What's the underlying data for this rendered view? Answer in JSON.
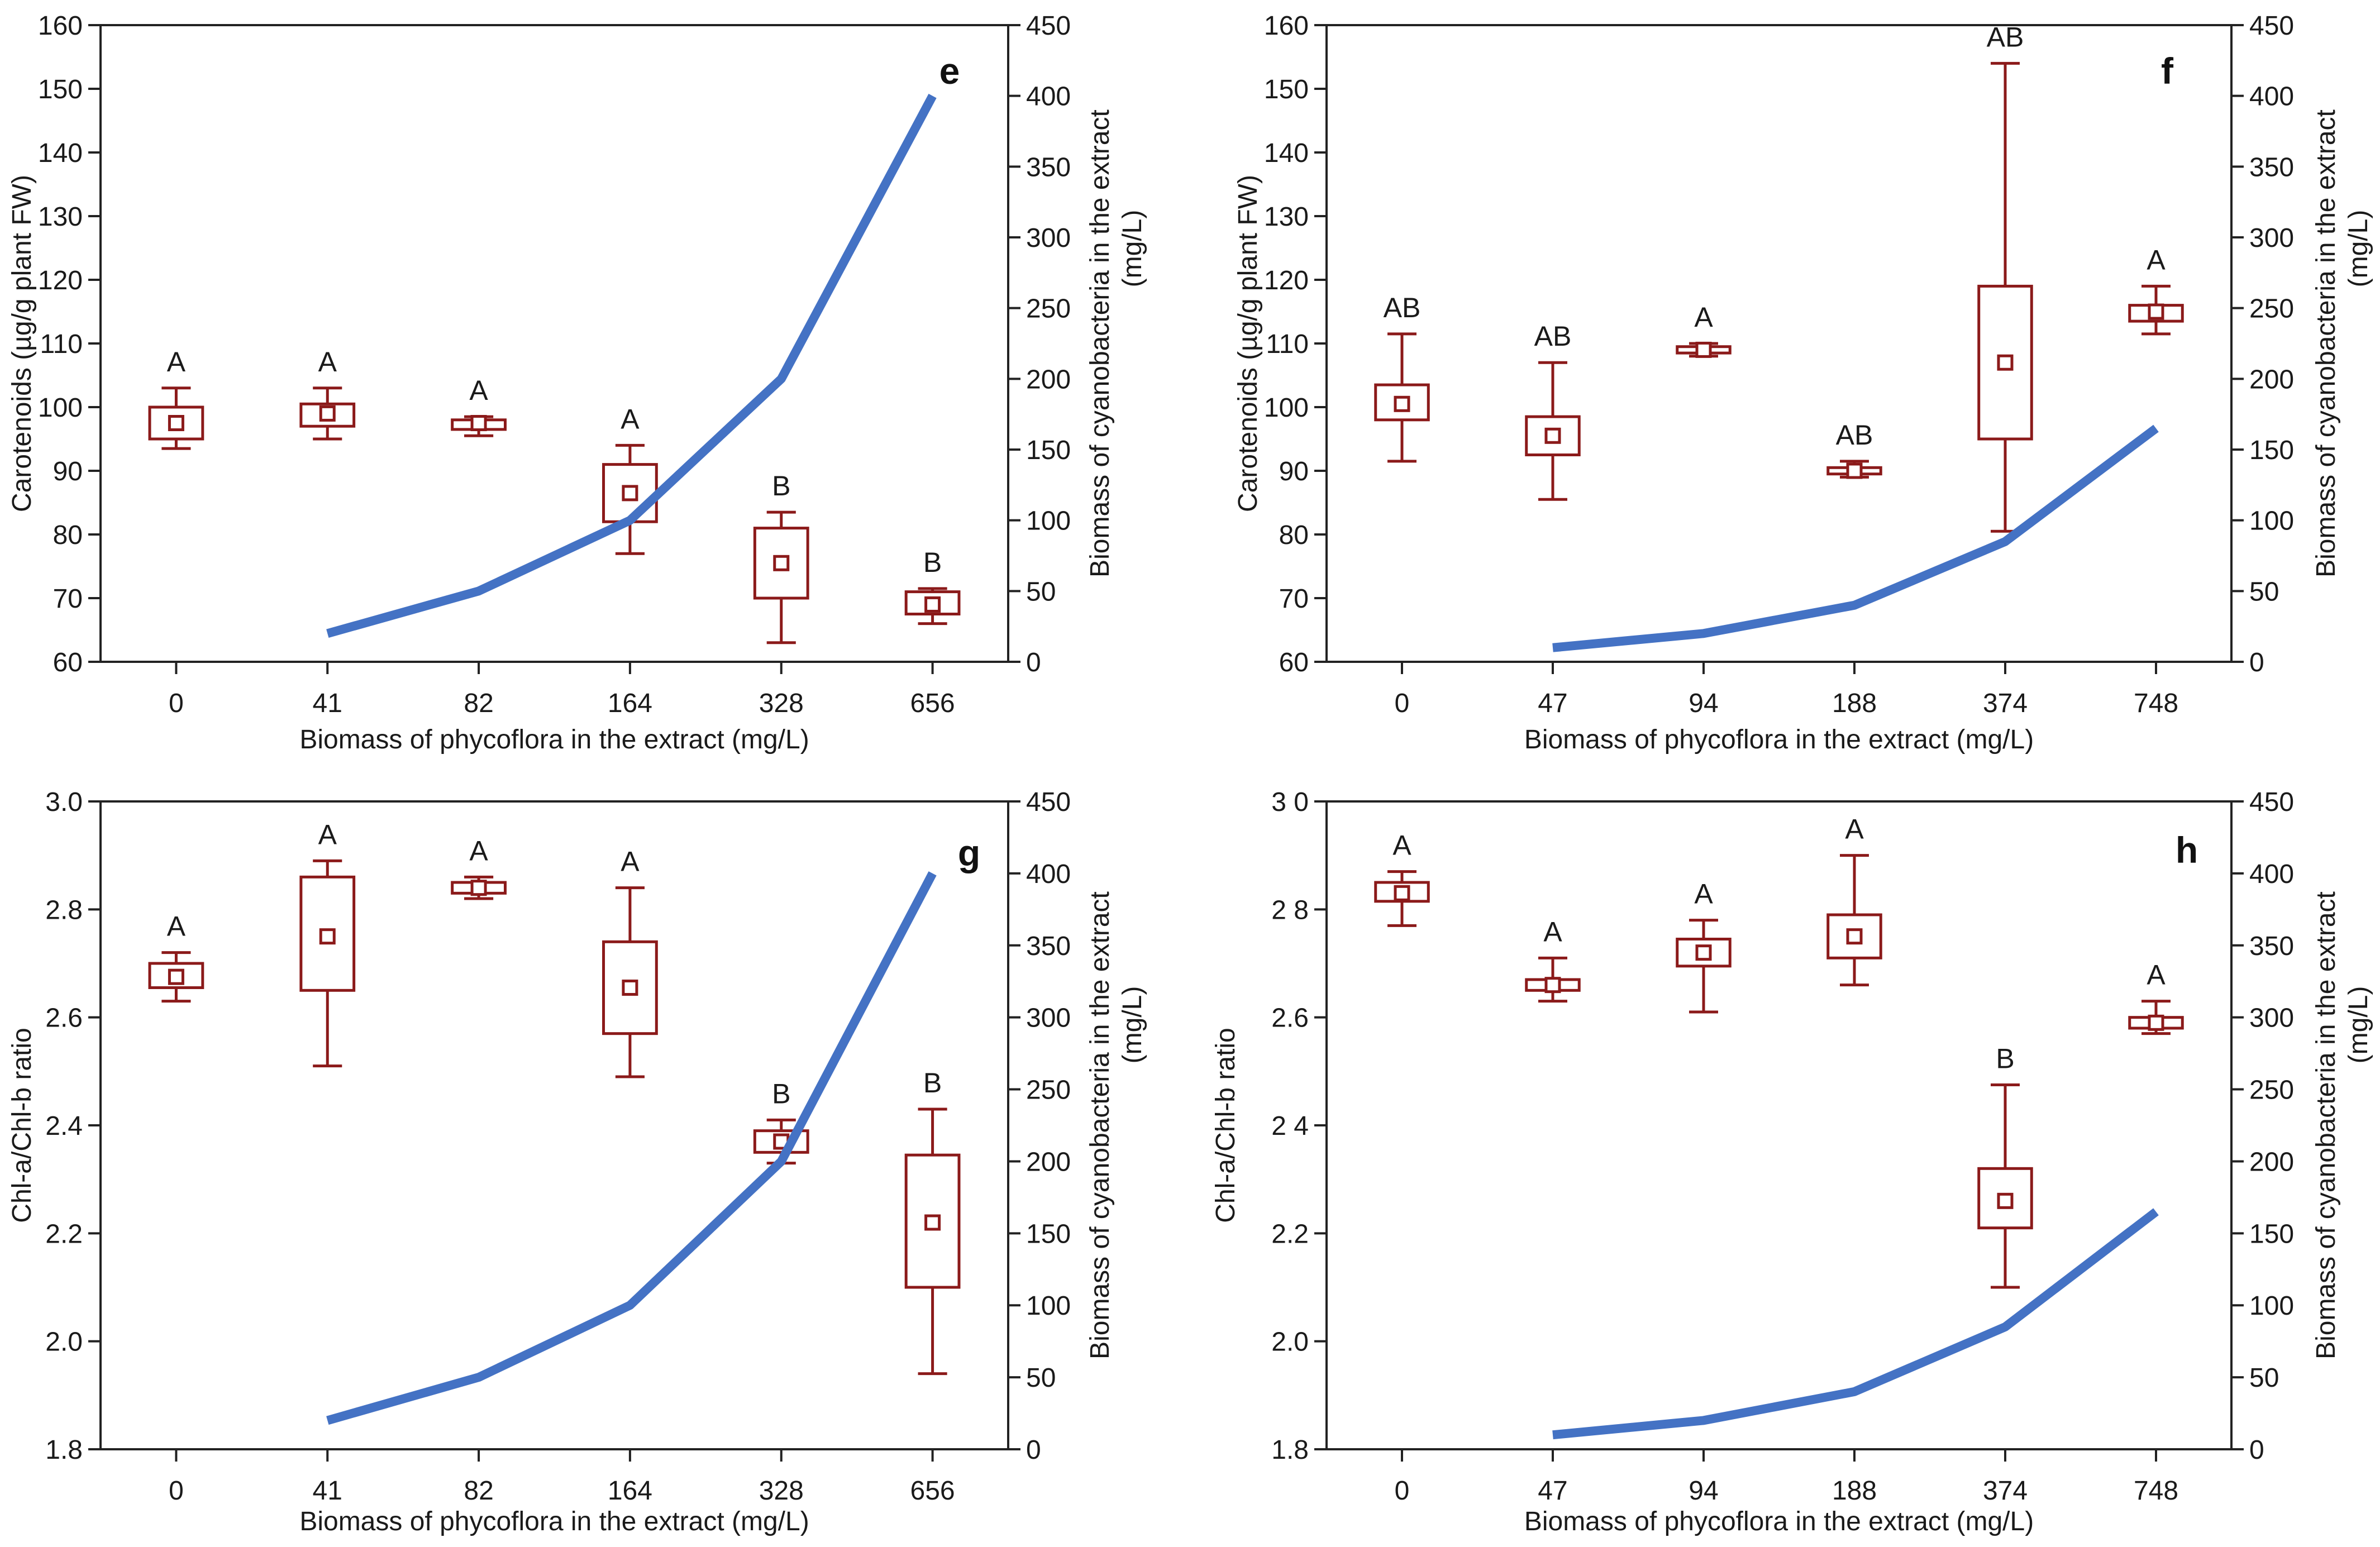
{
  "colors": {
    "box": "#8b1a1a",
    "line": "#4472c4",
    "axis": "#222222"
  },
  "chart_data": [
    {
      "panel": "e",
      "type": "box",
      "xlabel": "Biomass of phycoflora in the extract (mg/L)",
      "ylabel": "Carotenoids (µg/g plant FW)",
      "ylabel2": "Biomass of cyanobacteria in the extract",
      "ylabel2_unit": "(mg/L)",
      "categories": [
        "0",
        "41",
        "82",
        "164",
        "328",
        "656"
      ],
      "ylim": [
        60,
        160
      ],
      "yticks": [
        60,
        70,
        80,
        90,
        100,
        110,
        120,
        130,
        140,
        150,
        160
      ],
      "y2lim": [
        0,
        450
      ],
      "y2ticks": [
        0,
        50,
        100,
        150,
        200,
        250,
        300,
        350,
        400,
        450
      ],
      "boxes": [
        {
          "whisker_low": 93.5,
          "q1": 95,
          "median": 97.5,
          "q3": 100,
          "whisker_high": 103,
          "letter": "A"
        },
        {
          "whisker_low": 95,
          "q1": 97,
          "median": 99,
          "q3": 100.5,
          "whisker_high": 103,
          "letter": "A"
        },
        {
          "whisker_low": 95.5,
          "q1": 96.5,
          "median": 97.5,
          "q3": 98,
          "whisker_high": 98.5,
          "letter": "A"
        },
        {
          "whisker_low": 77,
          "q1": 82,
          "median": 86.5,
          "q3": 91,
          "whisker_high": 94,
          "letter": "A"
        },
        {
          "whisker_low": 63,
          "q1": 70,
          "median": 75.5,
          "q3": 81,
          "whisker_high": 83.5,
          "letter": "B"
        },
        {
          "whisker_low": 66,
          "q1": 67.5,
          "median": 69,
          "q3": 71,
          "whisker_high": 71.5,
          "letter": "B"
        }
      ],
      "line": {
        "name": "Biomass of cyanobacteria",
        "x_index": [
          1,
          2,
          3,
          4,
          5
        ],
        "values": [
          20,
          50,
          100,
          200,
          400
        ]
      }
    },
    {
      "panel": "f",
      "type": "box",
      "xlabel": "Biomass of phycoflora in the extract (mg/L)",
      "ylabel": "Carotenoids (µg/g plant FW)",
      "ylabel2": "Biomass of cyanobacteria in the extract",
      "ylabel2_unit": "(mg/L)",
      "categories": [
        "0",
        "47",
        "94",
        "188",
        "374",
        "748"
      ],
      "ylim": [
        60,
        160
      ],
      "yticks": [
        60,
        70,
        80,
        90,
        100,
        110,
        120,
        130,
        140,
        150,
        160
      ],
      "y2lim": [
        0,
        450
      ],
      "y2ticks": [
        0,
        50,
        100,
        150,
        200,
        250,
        300,
        350,
        400,
        450
      ],
      "boxes": [
        {
          "whisker_low": 91.5,
          "q1": 98,
          "median": 100.5,
          "q3": 103.5,
          "whisker_high": 111.5,
          "letter": "AB"
        },
        {
          "whisker_low": 85.5,
          "q1": 92.5,
          "median": 95.5,
          "q3": 98.5,
          "whisker_high": 107,
          "letter": "AB"
        },
        {
          "whisker_low": 108,
          "q1": 108.5,
          "median": 109,
          "q3": 109.5,
          "whisker_high": 110,
          "letter": "A"
        },
        {
          "whisker_low": 89,
          "q1": 89.5,
          "median": 90,
          "q3": 90.5,
          "whisker_high": 91.5,
          "letter": "AB"
        },
        {
          "whisker_low": 80.5,
          "q1": 95,
          "median": 107,
          "q3": 119,
          "whisker_high": 154,
          "letter": "AB"
        },
        {
          "whisker_low": 111.5,
          "q1": 113.5,
          "median": 115,
          "q3": 116,
          "whisker_high": 119,
          "letter": "A"
        }
      ],
      "line": {
        "name": "Biomass of cyanobacteria",
        "x_index": [
          1,
          2,
          3,
          4,
          5
        ],
        "values": [
          10,
          20,
          40,
          85,
          165
        ]
      }
    },
    {
      "panel": "g",
      "type": "box",
      "xlabel": "Biomass of phycoflora in the extract (mg/L)",
      "ylabel": "Chl-a/Chl-b ratio",
      "ylabel2": "Biomass of cyanobacteria in the extract",
      "ylabel2_unit": "(mg/L)",
      "categories": [
        "0",
        "41",
        "82",
        "164",
        "328",
        "656"
      ],
      "ylim": [
        1.8,
        3.0
      ],
      "yticks": [
        "1.8",
        "2.0",
        "2.2",
        "2.4",
        "2.6",
        "2.8",
        "3.0"
      ],
      "y2lim": [
        0,
        450
      ],
      "y2ticks": [
        0,
        50,
        100,
        150,
        200,
        250,
        300,
        350,
        400,
        450
      ],
      "boxes": [
        {
          "whisker_low": 2.63,
          "q1": 2.655,
          "median": 2.675,
          "q3": 2.7,
          "whisker_high": 2.72,
          "letter": "A"
        },
        {
          "whisker_low": 2.51,
          "q1": 2.65,
          "median": 2.75,
          "q3": 2.86,
          "whisker_high": 2.89,
          "letter": "A"
        },
        {
          "whisker_low": 2.82,
          "q1": 2.83,
          "median": 2.84,
          "q3": 2.85,
          "whisker_high": 2.86,
          "letter": "A"
        },
        {
          "whisker_low": 2.49,
          "q1": 2.57,
          "median": 2.655,
          "q3": 2.74,
          "whisker_high": 2.84,
          "letter": "A"
        },
        {
          "whisker_low": 2.33,
          "q1": 2.35,
          "median": 2.37,
          "q3": 2.39,
          "whisker_high": 2.41,
          "letter": "B"
        },
        {
          "whisker_low": 1.94,
          "q1": 2.1,
          "median": 2.22,
          "q3": 2.345,
          "whisker_high": 2.43,
          "letter": "B"
        }
      ],
      "line": {
        "name": "Biomass of cyanobacteria",
        "x_index": [
          1,
          2,
          3,
          4,
          5
        ],
        "values": [
          20,
          50,
          100,
          200,
          400
        ]
      }
    },
    {
      "panel": "h",
      "type": "box",
      "xlabel": "Biomass of phycoflora in the extract (mg/L)",
      "ylabel": "Chl-a/Chl-b ratio",
      "ylabel2": "Biomass of cyanobacteria in the extract",
      "ylabel2_unit": "(mg/L)",
      "categories": [
        "0",
        "47",
        "94",
        "188",
        "374",
        "748"
      ],
      "ylim": [
        1.8,
        3.0
      ],
      "yticks": [
        "1.8",
        "2.0",
        "2.2",
        "2 4",
        "2.6",
        "2 8",
        "3 0"
      ],
      "y2lim": [
        0,
        450
      ],
      "y2ticks": [
        0,
        50,
        100,
        150,
        200,
        250,
        300,
        350,
        400,
        450
      ],
      "boxes": [
        {
          "whisker_low": 2.77,
          "q1": 2.815,
          "median": 2.83,
          "q3": 2.85,
          "whisker_high": 2.87,
          "letter": "A"
        },
        {
          "whisker_low": 2.63,
          "q1": 2.65,
          "median": 2.66,
          "q3": 2.67,
          "whisker_high": 2.71,
          "letter": "A"
        },
        {
          "whisker_low": 2.61,
          "q1": 2.695,
          "median": 2.72,
          "q3": 2.745,
          "whisker_high": 2.78,
          "letter": "A"
        },
        {
          "whisker_low": 2.66,
          "q1": 2.71,
          "median": 2.75,
          "q3": 2.79,
          "whisker_high": 2.9,
          "letter": "A"
        },
        {
          "whisker_low": 2.1,
          "q1": 2.21,
          "median": 2.26,
          "q3": 2.32,
          "whisker_high": 2.475,
          "letter": "B"
        },
        {
          "whisker_low": 2.57,
          "q1": 2.58,
          "median": 2.59,
          "q3": 2.6,
          "whisker_high": 2.63,
          "letter": "A"
        }
      ],
      "line": {
        "name": "Biomass of cyanobacteria",
        "x_index": [
          1,
          2,
          3,
          4,
          5
        ],
        "values": [
          10,
          20,
          40,
          85,
          165
        ]
      }
    }
  ]
}
